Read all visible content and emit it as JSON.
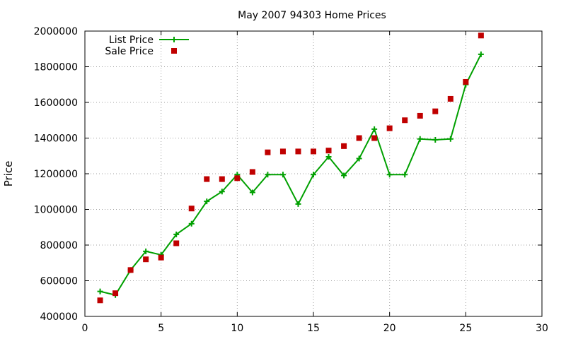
{
  "chart_data": {
    "type": "line",
    "title": "May 2007 94303 Home Prices",
    "xlabel": "",
    "ylabel": "Price",
    "xlim": [
      0,
      30
    ],
    "ylim": [
      400000,
      2000000
    ],
    "xticks": [
      0,
      5,
      10,
      15,
      20,
      25,
      30
    ],
    "yticks": [
      400000,
      600000,
      800000,
      1000000,
      1200000,
      1400000,
      1600000,
      1800000,
      2000000
    ],
    "grid": true,
    "legend": "top-left",
    "series": [
      {
        "name": "List Price",
        "style": "line+cross",
        "color": "#00a000",
        "x": [
          1,
          2,
          3,
          4,
          5,
          6,
          7,
          8,
          9,
          10,
          11,
          12,
          13,
          14,
          15,
          16,
          17,
          18,
          19,
          20,
          21,
          22,
          23,
          24,
          25,
          26
        ],
        "y": [
          540000,
          520000,
          660000,
          765000,
          745000,
          860000,
          920000,
          1045000,
          1100000,
          1195000,
          1095000,
          1195000,
          1195000,
          1030000,
          1195000,
          1295000,
          1190000,
          1285000,
          1450000,
          1195000,
          1195000,
          1395000,
          1390000,
          1395000,
          1700000,
          1870000
        ]
      },
      {
        "name": "Sale Price",
        "style": "square",
        "color": "#c00000",
        "x": [
          1,
          2,
          3,
          4,
          5,
          6,
          7,
          8,
          9,
          10,
          11,
          12,
          13,
          14,
          15,
          16,
          17,
          18,
          19,
          20,
          21,
          22,
          23,
          24,
          25,
          26
        ],
        "y": [
          490000,
          530000,
          660000,
          720000,
          730000,
          810000,
          1005000,
          1170000,
          1170000,
          1175000,
          1210000,
          1320000,
          1325000,
          1325000,
          1325000,
          1330000,
          1355000,
          1400000,
          1400000,
          1455000,
          1500000,
          1525000,
          1550000,
          1620000,
          1715000,
          1975000
        ]
      }
    ]
  }
}
